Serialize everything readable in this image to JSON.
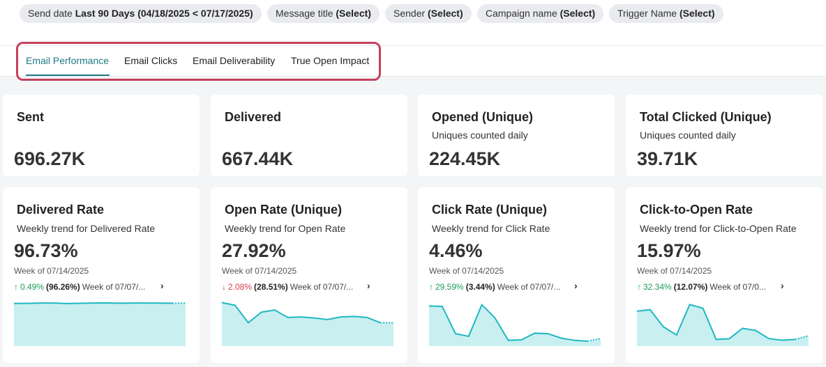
{
  "filters": [
    {
      "label": "Send date",
      "value": "Last 90 Days (04/18/2025 < 07/17/2025)"
    },
    {
      "label": "Message title",
      "value": "(Select)"
    },
    {
      "label": "Sender",
      "value": "(Select)"
    },
    {
      "label": "Campaign name",
      "value": "(Select)"
    },
    {
      "label": "Trigger Name",
      "value": "(Select)"
    }
  ],
  "tabs": [
    {
      "label": "Email Performance",
      "active": true
    },
    {
      "label": "Email Clicks",
      "active": false
    },
    {
      "label": "Email Deliverability",
      "active": false
    },
    {
      "label": "True Open Impact",
      "active": false
    }
  ],
  "summary_cards": [
    {
      "title": "Sent",
      "subtitle": "",
      "value": "696.27K"
    },
    {
      "title": "Delivered",
      "subtitle": "",
      "value": "667.44K"
    },
    {
      "title": "Opened (Unique)",
      "subtitle": "Uniques counted daily",
      "value": "224.45K"
    },
    {
      "title": "Total Clicked (Unique)",
      "subtitle": "Uniques counted daily",
      "value": "39.71K"
    }
  ],
  "colors": {
    "accent": "#1e7a86",
    "highlight": "#c4415d",
    "spark_line": "#1fb8c0",
    "spark_fill": "#c9eff1",
    "up": "#1a9b57",
    "down": "#d93a4a"
  },
  "chart_data": [
    {
      "type": "area",
      "title": "Delivered Rate",
      "subtitle": "Weekly trend for Delivered Rate",
      "value": "96.73%",
      "week": "Week of 07/14/2025",
      "change": {
        "direction": "up",
        "arrow": "↑",
        "percent": "0.49%",
        "base": "(96.26%)",
        "prev": "Week of 07/07/..."
      },
      "ylim": [
        0,
        100
      ],
      "values": [
        95.8,
        95.9,
        96.6,
        96.7,
        95.6,
        96.0,
        96.6,
        96.8,
        96.2,
        96.7,
        96.6,
        96.4,
        96.3,
        96.5
      ]
    },
    {
      "type": "area",
      "title": "Open Rate (Unique)",
      "subtitle": "Weekly trend for Open Rate",
      "value": "27.92%",
      "week": "Week of 07/14/2025",
      "change": {
        "direction": "down",
        "arrow": "↓",
        "percent": "2.08%",
        "base": "(28.51%)",
        "prev": "Week of 07/07/..."
      },
      "ylim": [
        0,
        42
      ],
      "values": [
        41.0,
        38.5,
        22.0,
        32.0,
        34.0,
        27.0,
        27.5,
        26.5,
        25.0,
        27.5,
        28.0,
        27.0,
        22.0,
        22.0
      ]
    },
    {
      "type": "area",
      "title": "Click Rate (Unique)",
      "subtitle": "Weekly trend for Click Rate",
      "value": "4.46%",
      "week": "Week of 07/14/2025",
      "change": {
        "direction": "up",
        "arrow": "↑",
        "percent": "29.59%",
        "base": "(3.44%)",
        "prev": "Week of 07/07/..."
      },
      "ylim": [
        0,
        10
      ],
      "values": [
        9.0,
        8.9,
        2.8,
        2.2,
        9.3,
        6.3,
        1.3,
        1.4,
        2.9,
        2.8,
        1.8,
        1.3,
        1.1,
        1.7
      ]
    },
    {
      "type": "area",
      "title": "Click-to-Open Rate",
      "subtitle": "Weekly trend for Click-to-Open Rate",
      "value": "15.97%",
      "week": "Week of 07/14/2025",
      "change": {
        "direction": "up",
        "arrow": "↑",
        "percent": "32.34%",
        "base": "(12.07%)",
        "prev": "Week of 07/0..."
      },
      "ylim": [
        0,
        30
      ],
      "values": [
        23.5,
        24.5,
        13.0,
        7.5,
        28.0,
        25.5,
        4.5,
        5.0,
        12.0,
        10.5,
        5.0,
        4.0,
        4.5,
        7.0
      ]
    }
  ]
}
